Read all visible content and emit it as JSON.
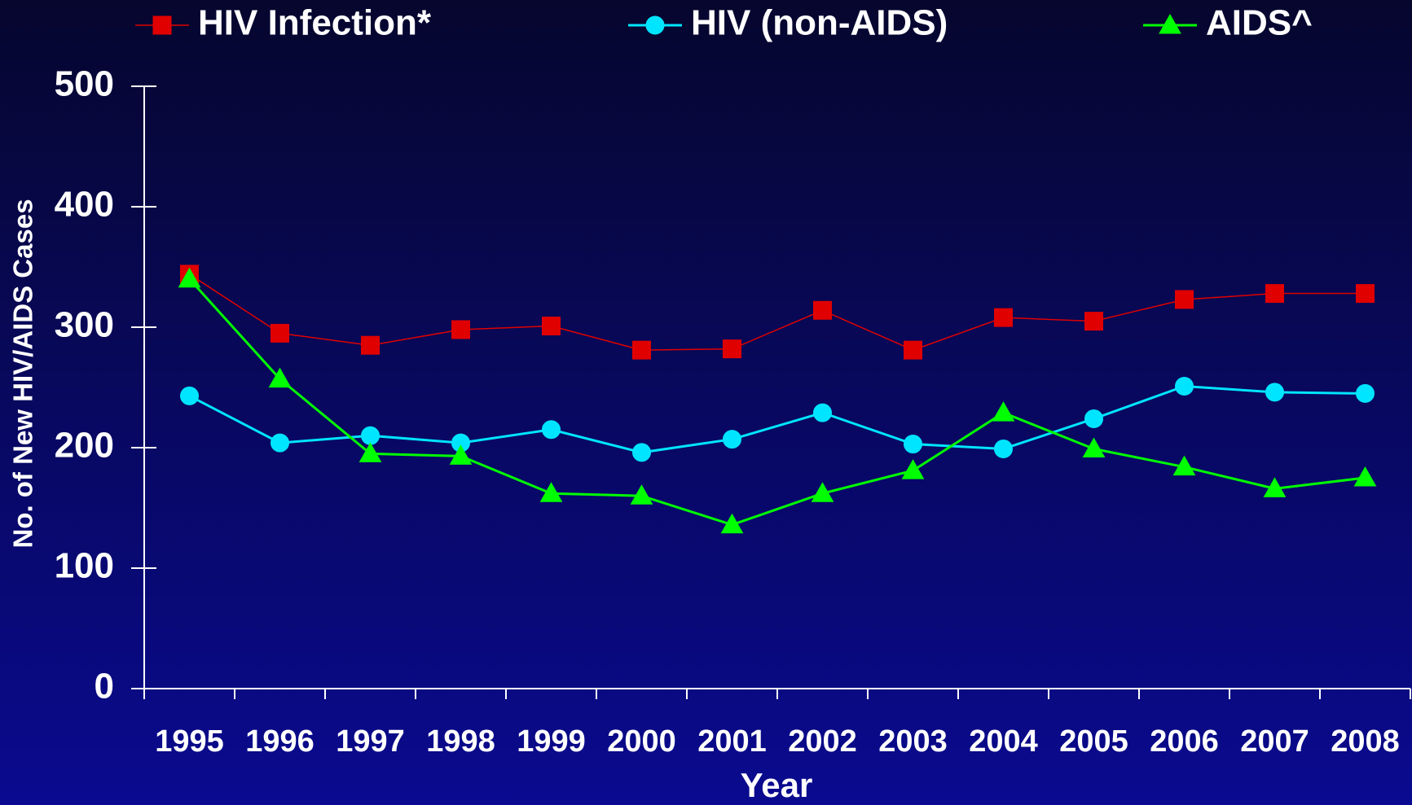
{
  "chart_data": {
    "type": "line",
    "x_label": "Year",
    "y_label": "No. of New HIV/AIDS Cases",
    "categories": [
      "1995",
      "1996",
      "1997",
      "1998",
      "1999",
      "2000",
      "2001",
      "2002",
      "2003",
      "2004",
      "2005",
      "2006",
      "2007",
      "2008"
    ],
    "series": [
      {
        "name": "HIV Infection*",
        "color": "#e00000",
        "marker": "square",
        "values": [
          344,
          295,
          285,
          298,
          301,
          281,
          282,
          314,
          281,
          308,
          305,
          323,
          328,
          328
        ]
      },
      {
        "name": "HIV (non-AIDS)",
        "color": "#00e5ff",
        "marker": "circle",
        "values": [
          243,
          204,
          210,
          204,
          215,
          196,
          207,
          229,
          203,
          199,
          224,
          251,
          246,
          245
        ]
      },
      {
        "name": "AIDS^",
        "color": "#00ff00",
        "marker": "triangle",
        "values": [
          340,
          257,
          195,
          193,
          162,
          160,
          136,
          162,
          181,
          229,
          199,
          184,
          166,
          175
        ]
      }
    ],
    "ylim": [
      0,
      500
    ],
    "yticks": [
      0,
      100,
      200,
      300,
      400,
      500
    ],
    "grid": false,
    "legend": "top"
  }
}
